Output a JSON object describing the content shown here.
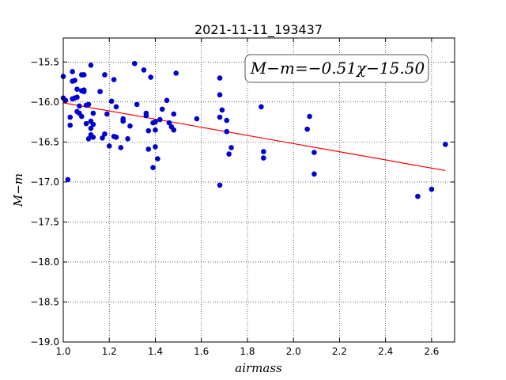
{
  "chart_data": {
    "type": "scatter",
    "title": "2021-11-11_193437",
    "xlabel": "airmass",
    "ylabel": "M−m",
    "xlim": [
      1.0,
      2.7
    ],
    "ylim": [
      -19.0,
      -15.2
    ],
    "x_ticks": [
      "1.0",
      "1.2",
      "1.4",
      "1.6",
      "1.8",
      "2.0",
      "2.2",
      "2.4",
      "2.6"
    ],
    "y_ticks": [
      "−15.5",
      "−16.0",
      "−16.5",
      "−17.0",
      "−17.5",
      "−18.0",
      "−18.5",
      "−19.0"
    ],
    "grid": true,
    "annotation": "M−m=−0.51χ−15.50",
    "point_color": "#0000cc",
    "fit_color": "#ff0000",
    "fit": {
      "slope": -0.51,
      "intercept": -15.5,
      "x_range": [
        1.0,
        2.66
      ]
    },
    "points": [
      [
        1.0,
        -15.68
      ],
      [
        1.0,
        -15.95
      ],
      [
        1.01,
        -15.98
      ],
      [
        1.02,
        -16.97
      ],
      [
        1.03,
        -16.19
      ],
      [
        1.03,
        -16.29
      ],
      [
        1.04,
        -15.96
      ],
      [
        1.04,
        -15.62
      ],
      [
        1.04,
        -15.74
      ],
      [
        1.05,
        -15.73
      ],
      [
        1.05,
        -15.95
      ],
      [
        1.06,
        -15.84
      ],
      [
        1.06,
        -15.94
      ],
      [
        1.06,
        -16.12
      ],
      [
        1.07,
        -16.05
      ],
      [
        1.07,
        -16.14
      ],
      [
        1.08,
        -15.66
      ],
      [
        1.08,
        -15.86
      ],
      [
        1.08,
        -16.18
      ],
      [
        1.09,
        -15.85
      ],
      [
        1.09,
        -15.87
      ],
      [
        1.09,
        -15.66
      ],
      [
        1.1,
        -16.04
      ],
      [
        1.1,
        -16.27
      ],
      [
        1.11,
        -16.03
      ],
      [
        1.11,
        -16.46
      ],
      [
        1.12,
        -15.54
      ],
      [
        1.12,
        -16.24
      ],
      [
        1.12,
        -16.33
      ],
      [
        1.12,
        -16.41
      ],
      [
        1.13,
        -16.14
      ],
      [
        1.13,
        -16.28
      ],
      [
        1.13,
        -16.44
      ],
      [
        1.16,
        -15.87
      ],
      [
        1.16,
        -15.87
      ],
      [
        1.17,
        -16.45
      ],
      [
        1.18,
        -15.66
      ],
      [
        1.18,
        -16.4
      ],
      [
        1.19,
        -16.15
      ],
      [
        1.2,
        -16.55
      ],
      [
        1.21,
        -15.99
      ],
      [
        1.22,
        -15.72
      ],
      [
        1.22,
        -16.43
      ],
      [
        1.23,
        -16.44
      ],
      [
        1.23,
        -16.06
      ],
      [
        1.25,
        -16.57
      ],
      [
        1.26,
        -16.24
      ],
      [
        1.26,
        -16.21
      ],
      [
        1.28,
        -16.46
      ],
      [
        1.29,
        -16.3
      ],
      [
        1.31,
        -15.52
      ],
      [
        1.32,
        -16.03
      ],
      [
        1.35,
        -15.6
      ],
      [
        1.36,
        -16.14
      ],
      [
        1.36,
        -16.17
      ],
      [
        1.37,
        -16.59
      ],
      [
        1.37,
        -16.36
      ],
      [
        1.38,
        -15.69
      ],
      [
        1.39,
        -16.82
      ],
      [
        1.39,
        -16.26
      ],
      [
        1.4,
        -16.25
      ],
      [
        1.4,
        -16.35
      ],
      [
        1.4,
        -16.56
      ],
      [
        1.41,
        -16.71
      ],
      [
        1.42,
        -16.22
      ],
      [
        1.43,
        -16.09
      ],
      [
        1.45,
        -15.98
      ],
      [
        1.46,
        -16.26
      ],
      [
        1.47,
        -16.31
      ],
      [
        1.48,
        -16.15
      ],
      [
        1.48,
        -16.35
      ],
      [
        1.49,
        -15.64
      ],
      [
        1.58,
        -16.21
      ],
      [
        1.68,
        -15.7
      ],
      [
        1.68,
        -15.91
      ],
      [
        1.68,
        -16.19
      ],
      [
        1.68,
        -17.04
      ],
      [
        1.69,
        -16.1
      ],
      [
        1.71,
        -16.37
      ],
      [
        1.71,
        -16.23
      ],
      [
        1.72,
        -16.65
      ],
      [
        1.73,
        -16.57
      ],
      [
        1.86,
        -16.06
      ],
      [
        1.87,
        -16.62
      ],
      [
        1.87,
        -16.7
      ],
      [
        2.06,
        -16.34
      ],
      [
        2.07,
        -16.18
      ],
      [
        2.09,
        -16.63
      ],
      [
        2.09,
        -16.9
      ],
      [
        2.54,
        -17.18
      ],
      [
        2.6,
        -17.09
      ],
      [
        2.66,
        -16.53
      ]
    ]
  }
}
